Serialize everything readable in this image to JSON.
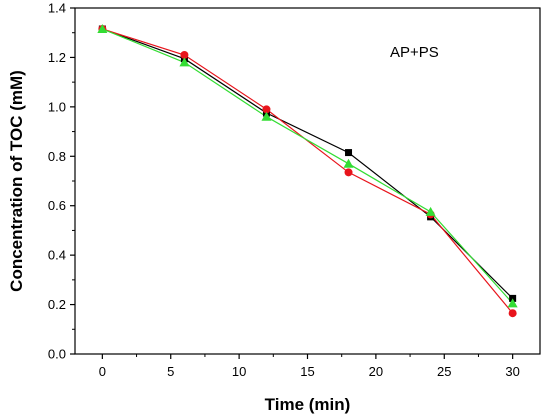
{
  "chart_data": {
    "type": "line",
    "xlabel": "Time (min)",
    "ylabel": "Concentration of TOC (mM)",
    "annotation": "AP+PS",
    "xlim": [
      -2,
      32
    ],
    "ylim": [
      0.0,
      1.4
    ],
    "xticks": [
      0,
      5,
      10,
      15,
      20,
      25,
      30
    ],
    "yticks": [
      0.0,
      0.2,
      0.4,
      0.6,
      0.8,
      1.0,
      1.2,
      1.4
    ],
    "ytick_labels": [
      "0.0",
      "0.2",
      "0.4",
      "0.6",
      "0.8",
      "1.0",
      "1.2",
      "1.4"
    ],
    "grid": false,
    "series": [
      {
        "x": [
          0,
          6,
          12,
          18,
          24,
          30
        ],
        "values": [
          1.315,
          1.195,
          0.975,
          0.815,
          0.555,
          0.225
        ],
        "color": "#000000",
        "marker": "square"
      },
      {
        "x": [
          0,
          6,
          12,
          18,
          24,
          30
        ],
        "values": [
          1.315,
          1.21,
          0.99,
          0.735,
          0.565,
          0.165
        ],
        "color": "#e8141c",
        "marker": "circle"
      },
      {
        "x": [
          0,
          6,
          12,
          18,
          24,
          30
        ],
        "values": [
          1.315,
          1.18,
          0.96,
          0.77,
          0.575,
          0.205
        ],
        "color": "#33dd33",
        "marker": "triangle"
      }
    ]
  }
}
